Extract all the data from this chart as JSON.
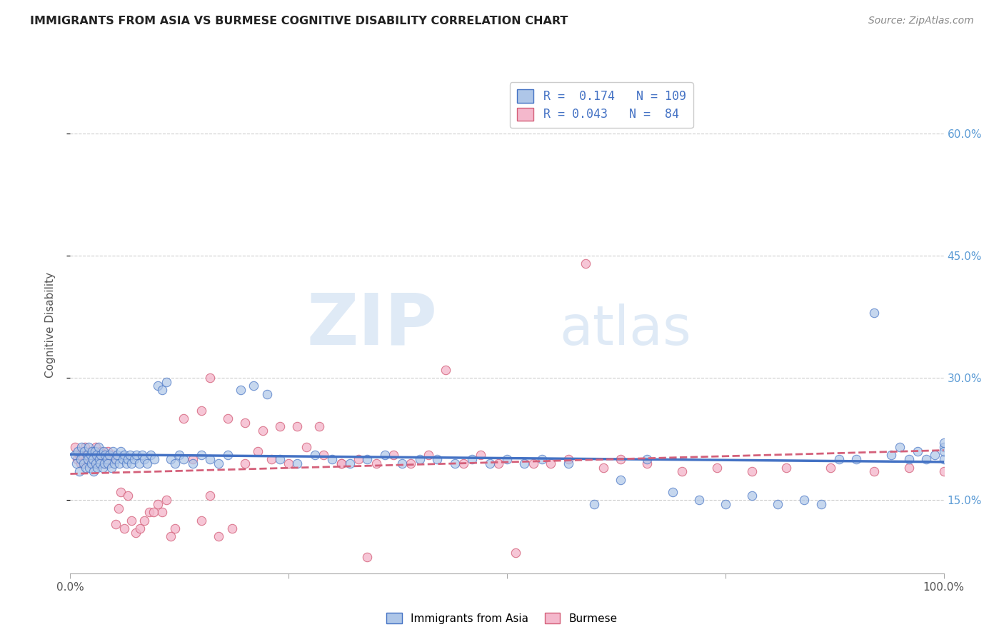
{
  "title": "IMMIGRANTS FROM ASIA VS BURMESE COGNITIVE DISABILITY CORRELATION CHART",
  "source": "Source: ZipAtlas.com",
  "ylabel": "Cognitive Disability",
  "ytick_labels": [
    "15.0%",
    "30.0%",
    "45.0%",
    "60.0%"
  ],
  "ytick_values": [
    0.15,
    0.3,
    0.45,
    0.6
  ],
  "xmin": 0.0,
  "xmax": 1.0,
  "ymin": 0.06,
  "ymax": 0.67,
  "legend_blue_R": "0.174",
  "legend_blue_N": "109",
  "legend_pink_R": "0.043",
  "legend_pink_N": "84",
  "legend_label_blue": "Immigrants from Asia",
  "legend_label_pink": "Burmese",
  "blue_color": "#aec6e8",
  "blue_line_color": "#4472c4",
  "pink_color": "#f4b8cc",
  "pink_line_color": "#d4607a",
  "watermark_zip": "ZIP",
  "watermark_atlas": "atlas",
  "blue_scatter_x": [
    0.005,
    0.007,
    0.009,
    0.01,
    0.012,
    0.013,
    0.015,
    0.016,
    0.018,
    0.019,
    0.02,
    0.021,
    0.022,
    0.023,
    0.024,
    0.025,
    0.026,
    0.027,
    0.028,
    0.029,
    0.03,
    0.031,
    0.032,
    0.033,
    0.034,
    0.035,
    0.037,
    0.038,
    0.039,
    0.04,
    0.042,
    0.043,
    0.045,
    0.047,
    0.049,
    0.05,
    0.052,
    0.054,
    0.056,
    0.058,
    0.06,
    0.062,
    0.064,
    0.066,
    0.068,
    0.07,
    0.073,
    0.076,
    0.079,
    0.082,
    0.085,
    0.088,
    0.092,
    0.096,
    0.1,
    0.105,
    0.11,
    0.115,
    0.12,
    0.125,
    0.13,
    0.14,
    0.15,
    0.16,
    0.17,
    0.18,
    0.195,
    0.21,
    0.225,
    0.24,
    0.26,
    0.28,
    0.3,
    0.32,
    0.34,
    0.36,
    0.38,
    0.4,
    0.42,
    0.44,
    0.46,
    0.48,
    0.5,
    0.52,
    0.54,
    0.57,
    0.6,
    0.63,
    0.66,
    0.69,
    0.72,
    0.75,
    0.78,
    0.81,
    0.84,
    0.86,
    0.88,
    0.9,
    0.92,
    0.94,
    0.95,
    0.96,
    0.97,
    0.98,
    0.99,
    1.0,
    1.0,
    1.0,
    1.0
  ],
  "blue_scatter_y": [
    0.205,
    0.195,
    0.21,
    0.185,
    0.2,
    0.215,
    0.195,
    0.21,
    0.19,
    0.205,
    0.2,
    0.215,
    0.19,
    0.205,
    0.195,
    0.21,
    0.2,
    0.185,
    0.21,
    0.195,
    0.205,
    0.19,
    0.215,
    0.2,
    0.195,
    0.205,
    0.19,
    0.21,
    0.195,
    0.205,
    0.2,
    0.195,
    0.205,
    0.19,
    0.21,
    0.195,
    0.2,
    0.205,
    0.195,
    0.21,
    0.2,
    0.205,
    0.195,
    0.2,
    0.205,
    0.195,
    0.2,
    0.205,
    0.195,
    0.205,
    0.2,
    0.195,
    0.205,
    0.2,
    0.29,
    0.285,
    0.295,
    0.2,
    0.195,
    0.205,
    0.2,
    0.195,
    0.205,
    0.2,
    0.195,
    0.205,
    0.285,
    0.29,
    0.28,
    0.2,
    0.195,
    0.205,
    0.2,
    0.195,
    0.2,
    0.205,
    0.195,
    0.2,
    0.2,
    0.195,
    0.2,
    0.195,
    0.2,
    0.195,
    0.2,
    0.195,
    0.145,
    0.175,
    0.2,
    0.16,
    0.15,
    0.145,
    0.155,
    0.145,
    0.15,
    0.145,
    0.2,
    0.2,
    0.38,
    0.205,
    0.215,
    0.2,
    0.21,
    0.2,
    0.205,
    0.215,
    0.2,
    0.21,
    0.22
  ],
  "pink_scatter_x": [
    0.005,
    0.008,
    0.01,
    0.012,
    0.015,
    0.017,
    0.019,
    0.021,
    0.023,
    0.025,
    0.027,
    0.029,
    0.031,
    0.033,
    0.035,
    0.037,
    0.04,
    0.043,
    0.046,
    0.049,
    0.052,
    0.055,
    0.058,
    0.062,
    0.066,
    0.07,
    0.075,
    0.08,
    0.085,
    0.09,
    0.095,
    0.1,
    0.105,
    0.11,
    0.115,
    0.12,
    0.13,
    0.14,
    0.15,
    0.16,
    0.17,
    0.185,
    0.2,
    0.215,
    0.23,
    0.25,
    0.27,
    0.29,
    0.31,
    0.33,
    0.35,
    0.37,
    0.39,
    0.41,
    0.43,
    0.45,
    0.47,
    0.49,
    0.51,
    0.53,
    0.55,
    0.57,
    0.59,
    0.61,
    0.63,
    0.66,
    0.7,
    0.74,
    0.78,
    0.82,
    0.87,
    0.92,
    0.96,
    1.0,
    0.15,
    0.16,
    0.18,
    0.2,
    0.22,
    0.24,
    0.26,
    0.285,
    0.31,
    0.34
  ],
  "pink_scatter_y": [
    0.215,
    0.2,
    0.205,
    0.195,
    0.21,
    0.215,
    0.205,
    0.195,
    0.21,
    0.205,
    0.2,
    0.215,
    0.195,
    0.205,
    0.21,
    0.205,
    0.195,
    0.21,
    0.2,
    0.205,
    0.12,
    0.14,
    0.16,
    0.115,
    0.155,
    0.125,
    0.11,
    0.115,
    0.125,
    0.135,
    0.135,
    0.145,
    0.135,
    0.15,
    0.105,
    0.115,
    0.25,
    0.2,
    0.125,
    0.155,
    0.105,
    0.115,
    0.195,
    0.21,
    0.2,
    0.195,
    0.215,
    0.205,
    0.195,
    0.2,
    0.195,
    0.205,
    0.195,
    0.205,
    0.31,
    0.195,
    0.205,
    0.195,
    0.085,
    0.195,
    0.195,
    0.2,
    0.44,
    0.19,
    0.2,
    0.195,
    0.185,
    0.19,
    0.185,
    0.19,
    0.19,
    0.185,
    0.19,
    0.185,
    0.26,
    0.3,
    0.25,
    0.245,
    0.235,
    0.24,
    0.24,
    0.24,
    0.195,
    0.08
  ]
}
